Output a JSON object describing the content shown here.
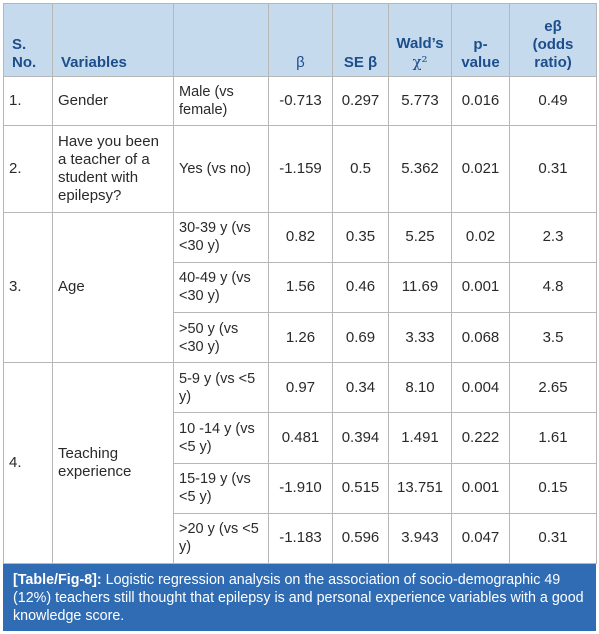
{
  "table": {
    "headers": {
      "sno": [
        "S.",
        "No."
      ],
      "variables": "Variables",
      "blank": "",
      "beta": "β",
      "se_beta": "SE β",
      "wald": [
        "Wald’s",
        "χ²"
      ],
      "pvalue": [
        "p-",
        "value"
      ],
      "odds": [
        "eβ",
        "(odds",
        "ratio)"
      ]
    },
    "rows": [
      {
        "sno": "1.",
        "variable": "Gender",
        "ref": "Male (vs female)",
        "beta": "-0.713",
        "se": "0.297",
        "wald": "5.773",
        "p": "0.016",
        "or": "0.49"
      },
      {
        "sno": "2.",
        "variable": "Have you been a teacher of a student with epilepsy?",
        "ref": "Yes (vs no)",
        "beta": "-1.159",
        "se": "0.5",
        "wald": "5.362",
        "p": "0.021",
        "or": "0.31"
      },
      {
        "sno": "3.",
        "variable": "Age",
        "ref": "30-39 y (vs <30 y)",
        "beta": "0.82",
        "se": "0.35",
        "wald": "5.25",
        "p": "0.02",
        "or": "2.3"
      },
      {
        "ref": "40-49 y (vs <30 y)",
        "beta": "1.56",
        "se": "0.46",
        "wald": "11.69",
        "p": "0.001",
        "or": "4.8"
      },
      {
        "ref": ">50 y (vs <30 y)",
        "beta": "1.26",
        "se": "0.69",
        "wald": "3.33",
        "p": "0.068",
        "or": "3.5"
      },
      {
        "sno": "4.",
        "variable": "Teaching experience",
        "ref": "5-9 y (vs <5 y)",
        "beta": "0.97",
        "se": "0.34",
        "wald": "8.10",
        "p": "0.004",
        "or": "2.65"
      },
      {
        "ref": "10 -14 y (vs <5 y)",
        "beta": "0.481",
        "se": "0.394",
        "wald": "1.491",
        "p": "0.222",
        "or": "1.61"
      },
      {
        "ref": "15-19 y (vs <5 y)",
        "beta": "-1.910",
        "se": "0.515",
        "wald": "13.751",
        "p": "0.001",
        "or": "0.15"
      },
      {
        "ref": ">20 y (vs <5 y)",
        "beta": "-1.183",
        "se": "0.596",
        "wald": "3.943",
        "p": "0.047",
        "or": "0.31"
      }
    ]
  },
  "caption": {
    "label": "[Table/Fig-8]:",
    "text": " Logistic regression analysis on the association of socio-demographic 49 (12%) teachers still thought that epilepsy is and personal experience variables with a good knowledge score."
  },
  "colors": {
    "header_bg": "#c6daee",
    "header_text": "#1d4e8c",
    "caption_bg": "#2f6cb3"
  }
}
